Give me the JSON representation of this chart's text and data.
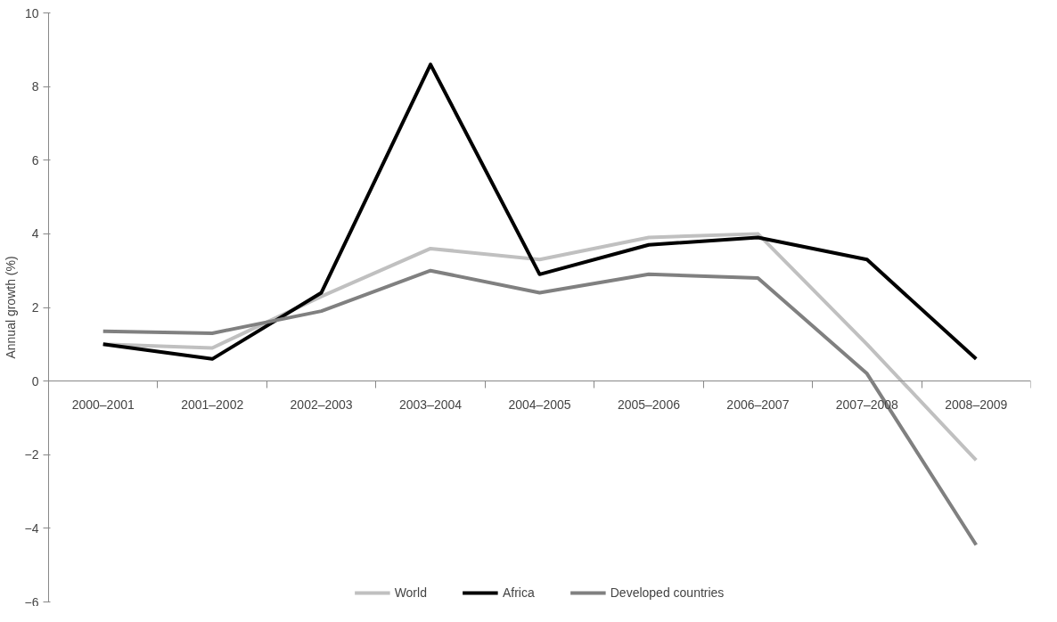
{
  "chart_data": {
    "type": "line",
    "ylabel": "Annual growth (%)",
    "categories": [
      "2000–2001",
      "2001–2002",
      "2002–2003",
      "2003–2004",
      "2004–2005",
      "2005–2006",
      "2006–2007",
      "2007–2008",
      "2008–2009"
    ],
    "series": [
      {
        "name": "World",
        "color": "#c0c0c0",
        "values": [
          1.0,
          0.9,
          2.3,
          3.6,
          3.3,
          3.9,
          4.0,
          1.0,
          -2.15
        ]
      },
      {
        "name": "Africa",
        "color": "#000000",
        "values": [
          1.0,
          0.6,
          2.4,
          8.6,
          2.9,
          3.7,
          3.9,
          3.3,
          0.6
        ]
      },
      {
        "name": "Developed countries",
        "color": "#808080",
        "values": [
          1.35,
          1.3,
          1.9,
          3.0,
          2.4,
          2.9,
          2.8,
          0.2,
          -4.45
        ]
      }
    ],
    "ylim": [
      -6,
      10
    ],
    "yticks": [
      -6,
      -4,
      -2,
      0,
      2,
      4,
      6,
      8,
      10
    ],
    "grid": false,
    "legend": "bottom",
    "marker": "none",
    "line_style": "solid"
  }
}
